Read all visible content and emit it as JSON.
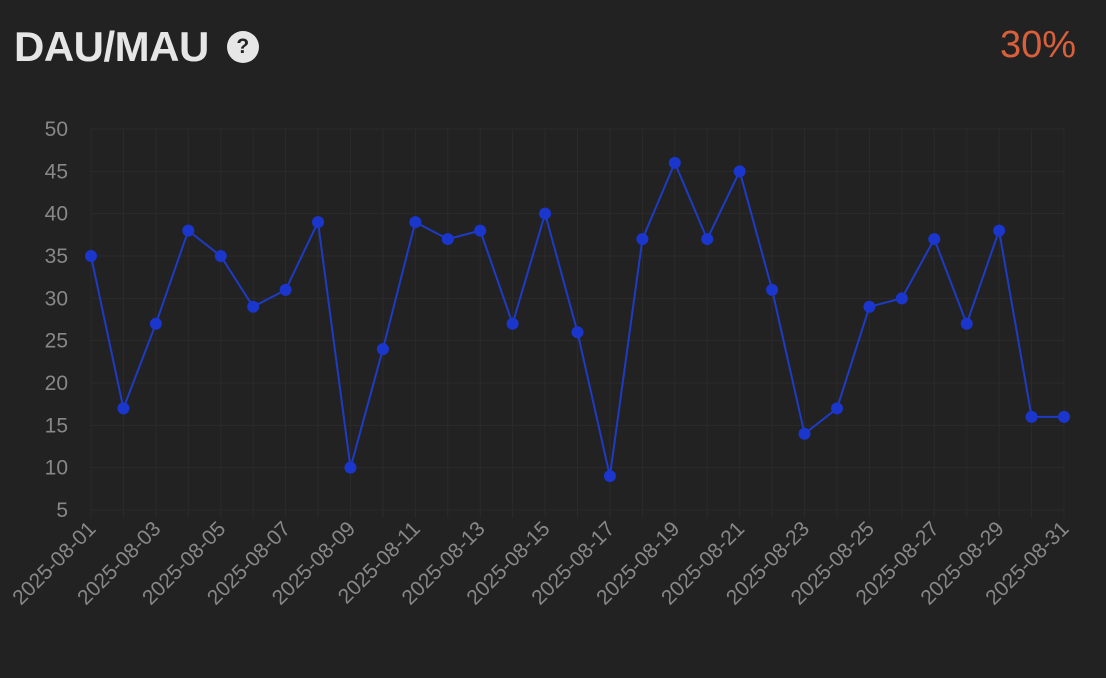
{
  "header": {
    "title": "DAU/MAU",
    "help_icon": "question-mark-icon",
    "metric_value": "30%"
  },
  "colors": {
    "background": "#222222",
    "title": "#e6e6e6",
    "metric": "#d9603b",
    "line": "#1f3bc4",
    "point": "#1a36cc",
    "grid": "#2b2b2b",
    "tick": "#888888"
  },
  "chart_data": {
    "type": "line",
    "x": [
      "2025-08-01",
      "2025-08-02",
      "2025-08-03",
      "2025-08-04",
      "2025-08-05",
      "2025-08-06",
      "2025-08-07",
      "2025-08-08",
      "2025-08-09",
      "2025-08-10",
      "2025-08-11",
      "2025-08-12",
      "2025-08-13",
      "2025-08-14",
      "2025-08-15",
      "2025-08-16",
      "2025-08-17",
      "2025-08-18",
      "2025-08-19",
      "2025-08-20",
      "2025-08-21",
      "2025-08-22",
      "2025-08-23",
      "2025-08-24",
      "2025-08-25",
      "2025-08-26",
      "2025-08-27",
      "2025-08-28",
      "2025-08-29",
      "2025-08-30",
      "2025-08-31"
    ],
    "x_tick_labels": [
      "2025-08-01",
      "2025-08-03",
      "2025-08-05",
      "2025-08-07",
      "2025-08-09",
      "2025-08-11",
      "2025-08-13",
      "2025-08-15",
      "2025-08-17",
      "2025-08-19",
      "2025-08-21",
      "2025-08-23",
      "2025-08-25",
      "2025-08-27",
      "2025-08-29",
      "2025-08-31"
    ],
    "series": [
      {
        "values": [
          35,
          17,
          27,
          38,
          35,
          29,
          31,
          39,
          10,
          24,
          39,
          37,
          38,
          27,
          40,
          26,
          9,
          37,
          46,
          37,
          45,
          31,
          14,
          17,
          29,
          30,
          37,
          27,
          38,
          16,
          16
        ]
      }
    ],
    "ylim": [
      5,
      50
    ],
    "y_ticks": [
      5,
      10,
      15,
      20,
      25,
      30,
      35,
      40,
      45,
      50
    ],
    "grid": true,
    "title": "",
    "xlabel": "",
    "ylabel": ""
  }
}
